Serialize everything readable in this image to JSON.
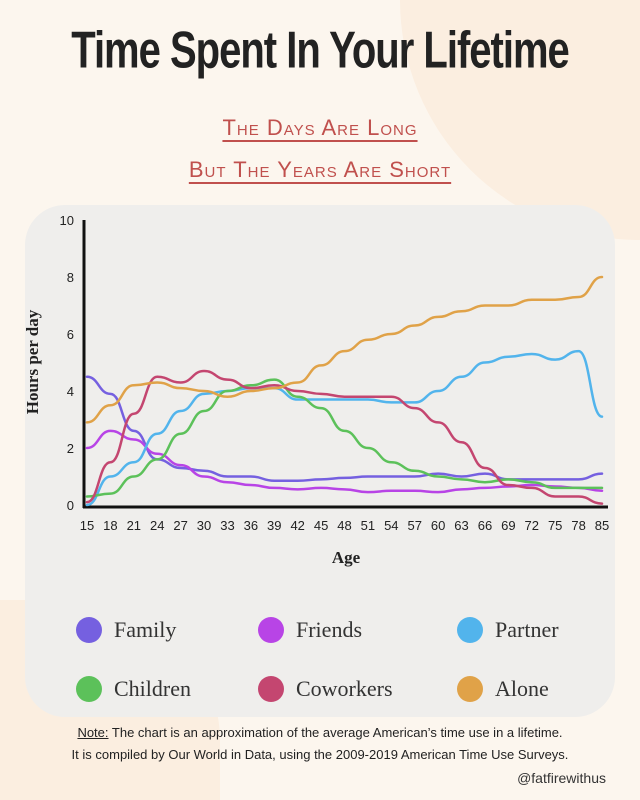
{
  "header": {
    "title": "Time Spent In Your Lifetime",
    "subtitle_line1": "The Days Are Long",
    "subtitle_line2": "But The Years Are Short"
  },
  "chart_data": {
    "type": "line",
    "xlabel": "Age",
    "ylabel": "Hours per day",
    "ylim": [
      0,
      10
    ],
    "yticks": [
      "0",
      "2",
      "4",
      "6",
      "8",
      "10"
    ],
    "x": [
      "15",
      "18",
      "21",
      "24",
      "27",
      "30",
      "33",
      "36",
      "39",
      "42",
      "45",
      "48",
      "51",
      "54",
      "57",
      "60",
      "63",
      "66",
      "69",
      "72",
      "75",
      "78",
      "85"
    ],
    "grid": false,
    "legend": "bottom",
    "series": [
      {
        "name": "Family",
        "color": "#7560e0",
        "values": [
          4.5,
          3.9,
          2.6,
          1.6,
          1.3,
          1.2,
          1.0,
          1.0,
          0.85,
          0.85,
          0.9,
          0.95,
          1.0,
          1.0,
          1.0,
          1.1,
          1.0,
          1.1,
          0.9,
          0.9,
          0.9,
          0.9,
          1.1
        ]
      },
      {
        "name": "Friends",
        "color": "#b844e6",
        "values": [
          2.0,
          2.6,
          2.3,
          1.8,
          1.4,
          1.0,
          0.8,
          0.7,
          0.6,
          0.55,
          0.6,
          0.55,
          0.45,
          0.5,
          0.5,
          0.45,
          0.55,
          0.6,
          0.65,
          0.7,
          0.65,
          0.6,
          0.5
        ]
      },
      {
        "name": "Partner",
        "color": "#52b4ec",
        "values": [
          0,
          1.0,
          1.5,
          2.5,
          3.3,
          3.9,
          4.0,
          4.1,
          4.1,
          3.7,
          3.7,
          3.7,
          3.7,
          3.6,
          3.6,
          4.0,
          4.5,
          5.0,
          5.2,
          5.3,
          5.1,
          5.4,
          3.1
        ]
      },
      {
        "name": "Children",
        "color": "#5cc15a",
        "values": [
          0.3,
          0.4,
          1.0,
          1.6,
          2.5,
          3.3,
          4.0,
          4.2,
          4.4,
          3.8,
          3.4,
          2.6,
          2.0,
          1.5,
          1.2,
          1.0,
          0.9,
          0.8,
          0.9,
          0.8,
          0.6,
          0.6,
          0.6
        ]
      },
      {
        "name": "Coworkers",
        "color": "#c44670",
        "values": [
          0.1,
          1.5,
          3.2,
          4.5,
          4.3,
          4.7,
          4.4,
          4.1,
          4.2,
          4.0,
          3.9,
          3.8,
          3.8,
          3.8,
          3.4,
          2.9,
          2.2,
          1.3,
          0.7,
          0.6,
          0.3,
          0.3,
          0.05
        ]
      },
      {
        "name": "Alone",
        "color": "#e0a248",
        "values": [
          2.9,
          3.5,
          4.2,
          4.3,
          4.1,
          4.0,
          3.8,
          4.0,
          4.1,
          4.3,
          4.9,
          5.4,
          5.8,
          6.0,
          6.3,
          6.6,
          6.8,
          7.0,
          7.0,
          7.2,
          7.2,
          7.3,
          8.0
        ]
      }
    ]
  },
  "footer": {
    "note_label": "Note:",
    "note_line1": " The chart is an approximation of the average American’s time use in a lifetime.",
    "note_line2": "It is compiled by Our World in Data, using the 2009-2019 American Time Use Surveys.",
    "handle": "@fatfirewithus"
  }
}
